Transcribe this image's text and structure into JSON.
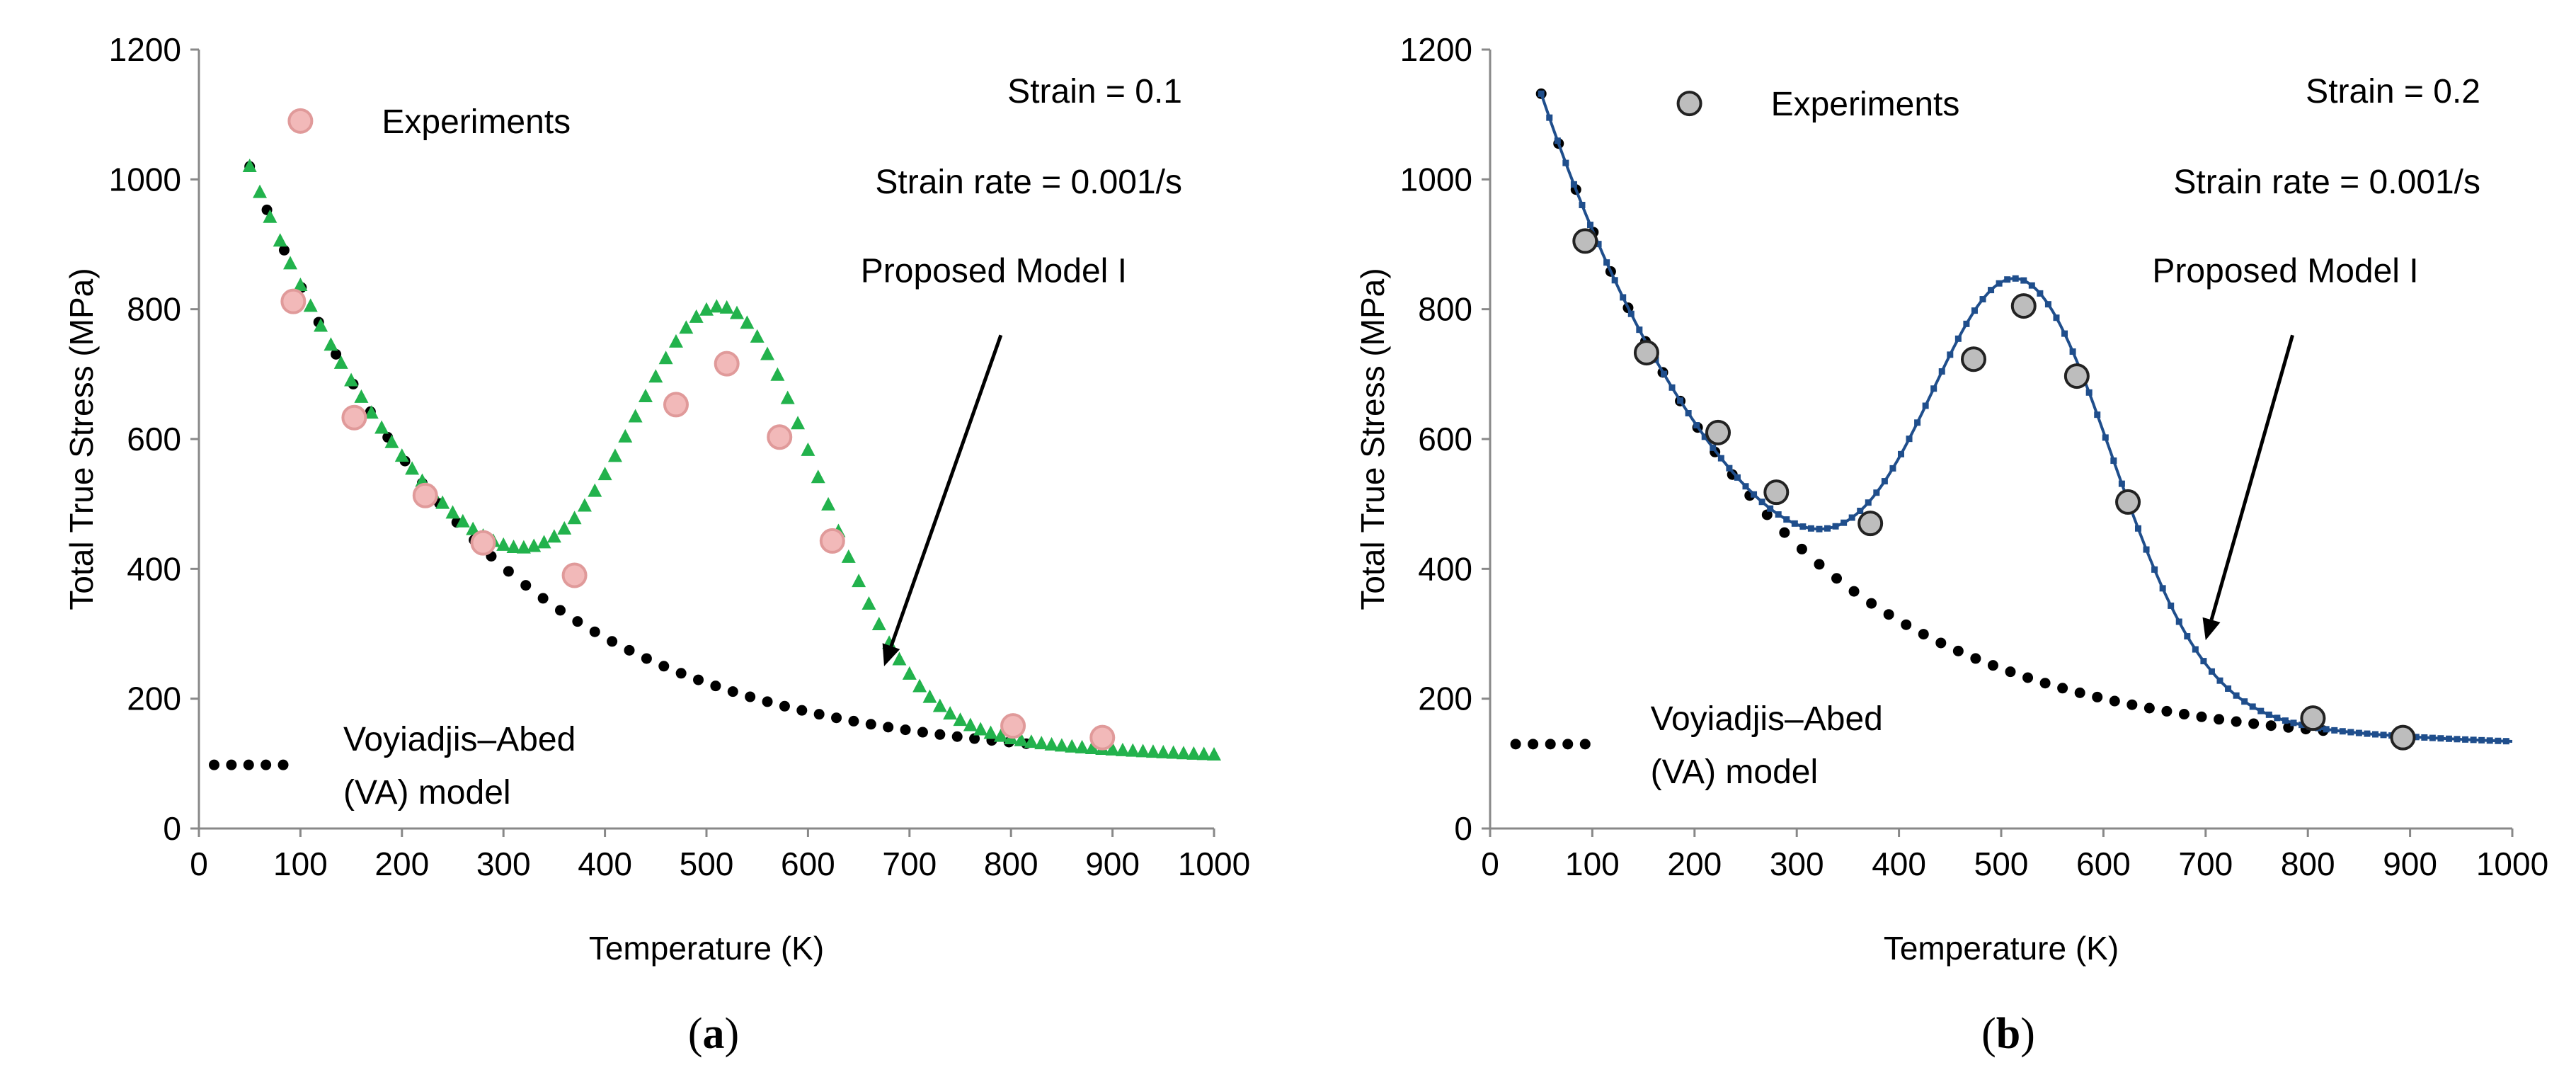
{
  "chart_data": [
    {
      "panel_label": "a",
      "type": "scatter",
      "xlabel": "Temperature (K)",
      "ylabel": "Total True Stress (MPa)",
      "xlim": [
        0,
        1000
      ],
      "ylim": [
        0,
        1200
      ],
      "xticks": [
        0,
        100,
        200,
        300,
        400,
        500,
        600,
        700,
        800,
        900,
        1000
      ],
      "yticks": [
        0,
        200,
        400,
        600,
        800,
        1000,
        1200
      ],
      "grid": false,
      "legend_position": "top-left",
      "annotations": {
        "strain": "Strain = 0.1",
        "strain_rate": "Strain rate = 0.001/s",
        "model_label": "Proposed Model I",
        "va_label_line1": "Voyiadjis–Abed",
        "va_label_line2": "(VA) model",
        "arrow_from": [
          790,
          760
        ],
        "arrow_to": [
          675,
          250
        ]
      },
      "series": [
        {
          "name": "Experiments",
          "kind": "markers",
          "marker": "circle",
          "color": "#f2b9b9",
          "stroke": "#e09a9a",
          "x": [
            93,
            153,
            223,
            280,
            370,
            470,
            520,
            572,
            624,
            802,
            890
          ],
          "y": [
            812,
            633,
            513,
            440,
            390,
            653,
            716,
            603,
            443,
            158,
            140
          ]
        },
        {
          "name": "Proposed Model I",
          "kind": "triangles",
          "color": "#22b24c",
          "model": {
            "base": "va",
            "peak_amp": 588,
            "peak_center": 520,
            "peak_width": 92,
            "tail": 100
          }
        },
        {
          "name": "Voyiadjis–Abed (VA) model",
          "kind": "dots",
          "color": "#000000",
          "model": {
            "base": "va",
            "tail": 100,
            "stop": 820
          }
        }
      ],
      "va_params": {
        "y0": 100,
        "amp": 920,
        "decay": 225,
        "x0": 50
      },
      "legend_marker": {
        "x": 100,
        "y": 1090
      },
      "va_legend_dots": {
        "x_start": 15,
        "x_end": 90,
        "y": 98
      }
    },
    {
      "panel_label": "b",
      "type": "scatter",
      "xlabel": "Temperature (K)",
      "ylabel": "Total True Stress (MPa)",
      "xlim": [
        0,
        1000
      ],
      "ylim": [
        0,
        1200
      ],
      "xticks": [
        0,
        100,
        200,
        300,
        400,
        500,
        600,
        700,
        800,
        900,
        1000
      ],
      "yticks": [
        0,
        200,
        400,
        600,
        800,
        1000,
        1200
      ],
      "grid": false,
      "legend_position": "top-left",
      "annotations": {
        "strain": "Strain = 0.2",
        "strain_rate": "Strain rate = 0.001/s",
        "model_label": "Proposed Model I",
        "va_label_line1": "Voyiadjis–Abed",
        "va_label_line2": "(VA) model",
        "arrow_from": [
          785,
          760
        ],
        "arrow_to": [
          700,
          290
        ]
      },
      "series": [
        {
          "name": "Experiments",
          "kind": "markers",
          "marker": "circle",
          "color": "#bdbdbd",
          "stroke": "#222222",
          "x": [
            93,
            153,
            223,
            280,
            372,
            473,
            522,
            574,
            624,
            805,
            893
          ],
          "y": [
            905,
            733,
            610,
            518,
            470,
            723,
            805,
            697,
            503,
            170,
            140
          ]
        },
        {
          "name": "Proposed Model I",
          "kind": "line-squares",
          "color": "#1f4e8c",
          "model": {
            "base": "va",
            "peak_amp": 610,
            "peak_center": 520,
            "peak_width": 90,
            "tail": 122
          }
        },
        {
          "name": "Voyiadjis–Abed (VA) model",
          "kind": "dots",
          "color": "#000000",
          "model": {
            "base": "va",
            "tail": 122,
            "stop": 820
          }
        }
      ],
      "va_params": {
        "y0": 122,
        "amp": 1010,
        "decay": 215,
        "x0": 50
      },
      "legend_marker": {
        "x": 195,
        "y": 1117
      },
      "va_legend_dots": {
        "x_start": 25,
        "x_end": 105,
        "y": 130
      }
    }
  ]
}
